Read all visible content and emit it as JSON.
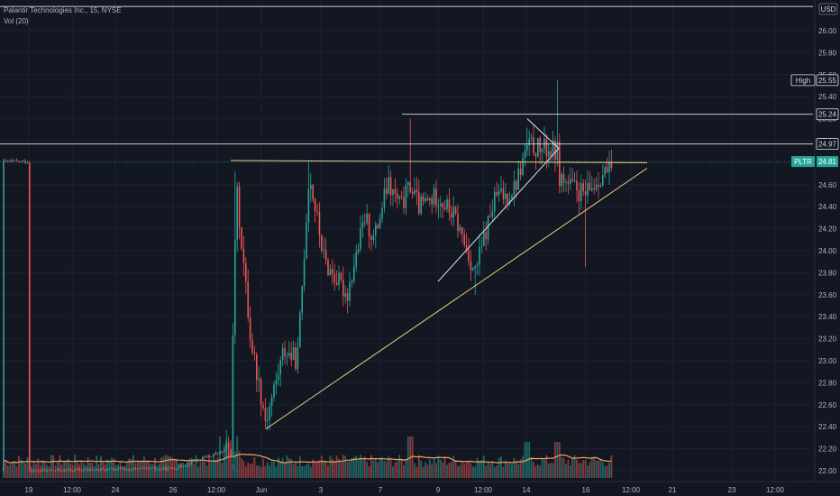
{
  "legend": {
    "line1": "Palantir Technologies Inc., 15, NYSE",
    "line2": "Vol (20)"
  },
  "currency_label": "USD",
  "colors": {
    "background": "#131722",
    "up": "#26a69a",
    "down": "#ef5350",
    "trendline": "#f0d080",
    "white_line": "#e0e3eb",
    "volume_ma": "#f5a25d",
    "price_tag": "#26a69a"
  },
  "chart_data": {
    "type": "candlestick",
    "title": "Palantir Technologies Inc., 15, NYSE",
    "ylim": [
      21.9,
      26.2
    ],
    "y_ticks": [
      "22.00",
      "22.20",
      "22.40",
      "22.60",
      "22.80",
      "23.00",
      "23.20",
      "23.40",
      "23.60",
      "23.80",
      "24.00",
      "24.20",
      "24.40",
      "24.60",
      "24.80",
      "25.00",
      "25.20",
      "25.40",
      "25.60",
      "25.80",
      "26.00"
    ],
    "x_ticks": [
      "19",
      "12:00",
      "24",
      "26",
      "12:00",
      "Jun",
      "3",
      "7",
      "9",
      "12:00",
      "14",
      "16",
      "12:00",
      "21",
      "23",
      "12:00"
    ],
    "price_tags": [
      {
        "name": "High",
        "label": "High",
        "value": "25.55",
        "price": 25.55
      },
      {
        "name": "resistance",
        "label": "",
        "value": "25.24",
        "price": 25.24
      },
      {
        "name": "level",
        "label": "",
        "value": "24.97",
        "price": 24.97
      },
      {
        "name": "last",
        "label": "PLTR",
        "value": "24.81",
        "price": 24.81
      }
    ],
    "horizontal_lines": [
      {
        "price": 26.22,
        "start": "first"
      },
      {
        "price": 25.24,
        "start": "7"
      },
      {
        "price": 24.97,
        "start": "first"
      }
    ],
    "trendlines": [
      {
        "name": "upper-trendline",
        "from": {
          "x": "26 12:00",
          "price": 24.82
        },
        "to": {
          "x": "16 12:00",
          "price": 24.8
        }
      },
      {
        "name": "ascending-trendline",
        "from": {
          "x": "Jun",
          "price": 22.38
        },
        "to": {
          "x": "16 12:00",
          "price": 24.75
        }
      },
      {
        "name": "pennant-lower",
        "from": {
          "x": "9",
          "price": 23.72
        },
        "to": {
          "x": "14 12:00",
          "price": 24.93
        }
      },
      {
        "name": "pennant-upper",
        "from": {
          "x": "14",
          "price": 25.2
        },
        "to": {
          "x": "14 12:00",
          "price": 24.93
        }
      }
    ],
    "close_path": [
      {
        "x": "19",
        "price": 22.0
      },
      {
        "x": "26",
        "price": 22.02
      },
      {
        "x": "26 12:00",
        "price": 22.2
      },
      {
        "x": "26 15:00",
        "price": 24.6
      },
      {
        "x": "26 20:00",
        "price": 23.2
      },
      {
        "x": "Jun",
        "price": 22.45
      },
      {
        "x": "Jun 12:00",
        "price": 23.1
      },
      {
        "x": "Jun 20:00",
        "price": 23.0
      },
      {
        "x": "3",
        "price": 24.7
      },
      {
        "x": "3 12:00",
        "price": 23.9
      },
      {
        "x": "3 20:00",
        "price": 23.6
      },
      {
        "x": "5",
        "price": 24.3
      },
      {
        "x": "5 12:00",
        "price": 24.1
      },
      {
        "x": "7",
        "price": 24.6
      },
      {
        "x": "7 12:00",
        "price": 24.4
      },
      {
        "x": "8",
        "price": 24.6
      },
      {
        "x": "8 12:00",
        "price": 24.4
      },
      {
        "x": "9",
        "price": 24.5
      },
      {
        "x": "9 12:00",
        "price": 24.3
      },
      {
        "x": "10",
        "price": 23.8
      },
      {
        "x": "10 12:00",
        "price": 24.2
      },
      {
        "x": "11",
        "price": 24.5
      },
      {
        "x": "12:00",
        "price": 24.5
      },
      {
        "x": "13",
        "price": 24.6
      },
      {
        "x": "14",
        "price": 24.95
      },
      {
        "x": "14 12:00",
        "price": 24.9
      },
      {
        "x": "15",
        "price": 24.7
      },
      {
        "x": "15 12:00",
        "price": 24.6
      },
      {
        "x": "16",
        "price": 24.5
      },
      {
        "x": "16 06:00",
        "price": 24.7
      },
      {
        "x": "16 12:00",
        "price": 24.81
      }
    ],
    "notable_highs": [
      {
        "x": "15",
        "price": 25.55
      },
      {
        "x": "8",
        "price": 25.2
      },
      {
        "x": "14",
        "price": 25.12
      },
      {
        "x": "26 15:00",
        "price": 24.72
      },
      {
        "x": "3",
        "price": 24.82
      }
    ],
    "notable_lows": [
      {
        "x": "Jun",
        "price": 22.38
      },
      {
        "x": "10",
        "price": 23.6
      },
      {
        "x": "16",
        "price": 23.85
      }
    ],
    "volume_indicator": {
      "name": "Vol (20)",
      "ma_period": 20
    }
  }
}
